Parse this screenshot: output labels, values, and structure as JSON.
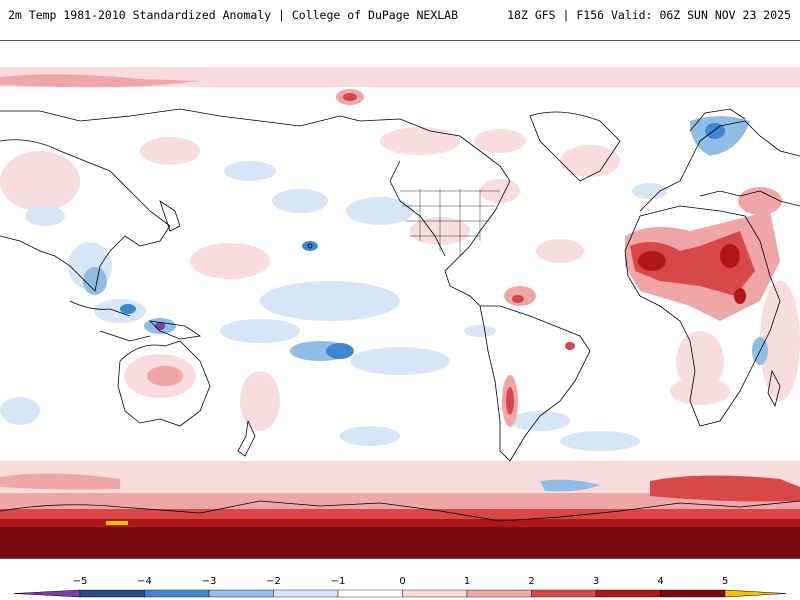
{
  "header": {
    "left_title": "2m Temp 1981-2010 Standardized Anomaly | College of DuPage NEXLAB",
    "right_title": "18Z GFS | F156 Valid: 06Z SUN NOV 23 2025"
  },
  "map": {
    "projection": "Pacific-centered global equirectangular",
    "background_color": "#ffffff",
    "coastline_color": "#000000"
  },
  "colorbar": {
    "ticks": [
      "−5",
      "−4",
      "−3",
      "−2",
      "−1",
      "0",
      "1",
      "2",
      "3",
      "4",
      "5"
    ],
    "colors": {
      "neg5": "#7b3fa8",
      "neg4": "#2b4a8a",
      "neg3": "#3e86cf",
      "neg2": "#8fbde6",
      "neg1": "#d5e6f6",
      "zero": "#ffffff",
      "pos1": "#f9dcdc",
      "pos2": "#eea6a6",
      "pos3": "#d94848",
      "pos4": "#b01818",
      "pos5": "#7a0a12",
      "over": "#f2c200"
    }
  }
}
